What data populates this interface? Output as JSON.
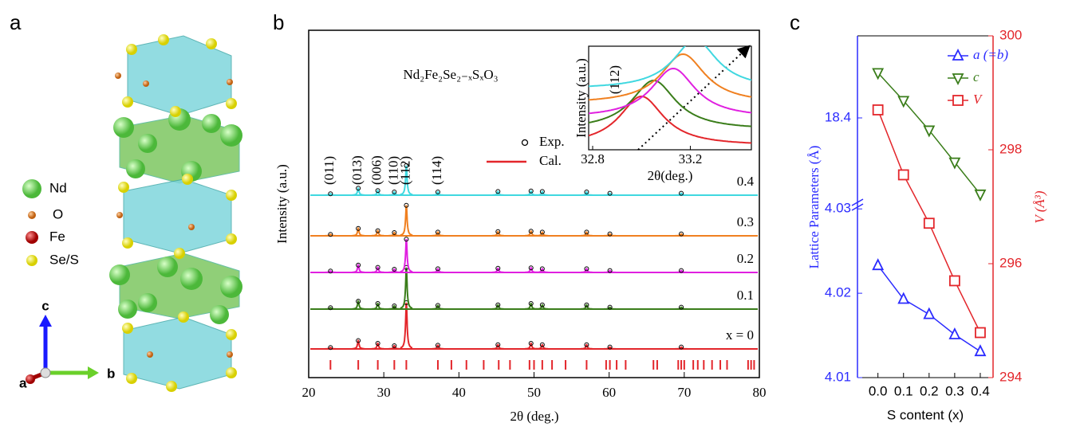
{
  "panel_labels": [
    "a",
    "b",
    "c"
  ],
  "structure": {
    "legend": [
      "Nd",
      "O",
      "Fe",
      "Se/S"
    ],
    "axis_labels": [
      "a",
      "b",
      "c"
    ]
  },
  "chart_data": [
    {
      "type": "xrd",
      "formula": "Nd₂Fe₂Se₂₋ₓSₓO₃",
      "xlabel": "2θ (deg.)",
      "ylabel": "Intensity (a.u.)",
      "xlim": [
        20,
        80
      ],
      "xticks": [
        20,
        30,
        40,
        50,
        60,
        70,
        80
      ],
      "legend_labels": [
        "Exp.",
        "Cal."
      ],
      "legend_colors": [
        "#000000",
        "#e3262b"
      ],
      "peak_positions": [
        22.9,
        26.6,
        29.2,
        31.4,
        33.0,
        37.2,
        45.2,
        49.6,
        51.1,
        57.0,
        60.1,
        69.6
      ],
      "peak_labels": [
        "(011)",
        "(013)",
        "(006)",
        "(110)",
        "(112)",
        "(114)",
        null,
        null,
        null,
        null,
        null,
        null
      ],
      "series": [
        {
          "name": "x = 0",
          "color": "#e3262b",
          "values": [
            3,
            18,
            12,
            7,
            100,
            8,
            9,
            12,
            9,
            9,
            4,
            4
          ]
        },
        {
          "name": "0.1",
          "color": "#3a7d1a",
          "values": [
            3,
            17,
            12,
            7,
            90,
            8,
            9,
            12,
            9,
            9,
            4,
            4
          ]
        },
        {
          "name": "0.2",
          "color": "#e020e0",
          "values": [
            3,
            16,
            11,
            7,
            72,
            8,
            9,
            10,
            8,
            8,
            4,
            4
          ]
        },
        {
          "name": "0.3",
          "color": "#f08020",
          "values": [
            3,
            16,
            11,
            7,
            66,
            8,
            9,
            10,
            8,
            8,
            4,
            4
          ]
        },
        {
          "name": "0.4",
          "color": "#40d8e0",
          "values": [
            3,
            15,
            10,
            7,
            64,
            7,
            8,
            9,
            8,
            7,
            4,
            4
          ]
        }
      ],
      "reflections": [
        22.9,
        26.6,
        29.2,
        31.4,
        33.0,
        37.2,
        39.0,
        41.0,
        43.3,
        45.3,
        46.8,
        49.4,
        50.0,
        51.1,
        52.4,
        54.2,
        57.0,
        59.6,
        60.1,
        61.0,
        62.2,
        65.9,
        66.4,
        69.2,
        69.6,
        70.0,
        71.2,
        71.8,
        72.6,
        73.7,
        74.8,
        75.7,
        78.5,
        78.9,
        79.3
      ]
    },
    {
      "type": "peak-shift",
      "label": "(112)",
      "xlabel": "2θ(deg.)",
      "ylabel": "Intensity (a.u.)",
      "xlim": [
        32.8,
        33.45
      ],
      "xticks": [
        32.8,
        33.2
      ],
      "centers": [
        33.0,
        33.05,
        33.13,
        33.17,
        33.22
      ],
      "colors": [
        "#e3262b",
        "#3a7d1a",
        "#e020e0",
        "#f08020",
        "#40d8e0"
      ]
    },
    {
      "type": "lattice",
      "xlabel": "S content (x)",
      "ylabel": "Lattice Parameters (Å)",
      "y2label": "V (Å³)",
      "xlim": [
        -0.08,
        0.45
      ],
      "xticks": [
        {
          "value": 0,
          "label": "0.0"
        },
        0.1,
        0.2,
        0.3,
        0.4
      ],
      "ylim": [
        4.01,
        4.0304
      ],
      "yticks": [
        4.01,
        4.02,
        4.03
      ],
      "ylim_upper": [
        18.3,
        18.5
      ],
      "yticks_upper": [
        18.4
      ],
      "y2lim": [
        294,
        300
      ],
      "y2ticks": [
        294,
        296,
        298,
        300
      ],
      "x": [
        0,
        0.1,
        0.2,
        0.3,
        0.4
      ],
      "series": [
        {
          "name": "a (=b)",
          "color": "#2b2bff",
          "axis": "y",
          "marker": "triangle-up",
          "values": [
            4.0233,
            4.0193,
            4.0175,
            4.0151,
            4.0131
          ]
        },
        {
          "name": "c",
          "color": "#3a7d1a",
          "axis": "y_upper",
          "marker": "triangle-down",
          "values": [
            18.455,
            18.421,
            18.385,
            18.346,
            18.307
          ]
        },
        {
          "name": "V",
          "color": "#e3262b",
          "axis": "y2",
          "marker": "square",
          "values": [
            298.7,
            297.56,
            296.71,
            295.7,
            294.79
          ]
        }
      ]
    }
  ]
}
